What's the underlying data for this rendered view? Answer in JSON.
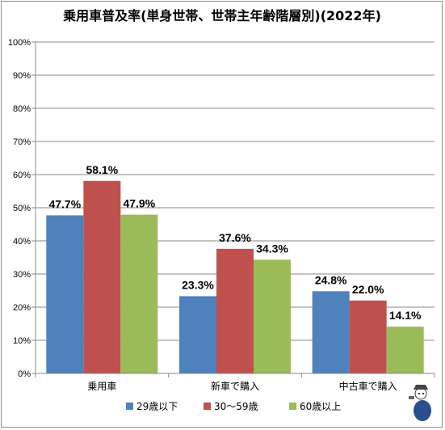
{
  "chart_data": {
    "type": "bar",
    "title": "乗用車普及率(単身世帯、世帯主年齢階層別)(2022年)",
    "categories": [
      "乗用車",
      "新車で購入",
      "中古車で購入"
    ],
    "series": [
      {
        "name": "29歳以下",
        "values": [
          47.7,
          23.3,
          24.8
        ],
        "labels": [
          "47.7%",
          "23.3%",
          "24.8%"
        ],
        "color": "#4f81bd"
      },
      {
        "name": "30～59歳",
        "values": [
          58.1,
          37.6,
          22.0
        ],
        "labels": [
          "58.1%",
          "37.6%",
          "22.0%"
        ],
        "color": "#c0504d"
      },
      {
        "name": "60歳以上",
        "values": [
          47.9,
          34.3,
          14.1
        ],
        "labels": [
          "47.9%",
          "34.3%",
          "14.1%"
        ],
        "color": "#9bbb59"
      }
    ],
    "ylim": [
      0,
      100
    ],
    "yticks": [
      "0%",
      "10%",
      "20%",
      "30%",
      "40%",
      "50%",
      "60%",
      "70%",
      "80%",
      "90%",
      "100%"
    ],
    "grid": true,
    "legend_position": "bottom"
  }
}
